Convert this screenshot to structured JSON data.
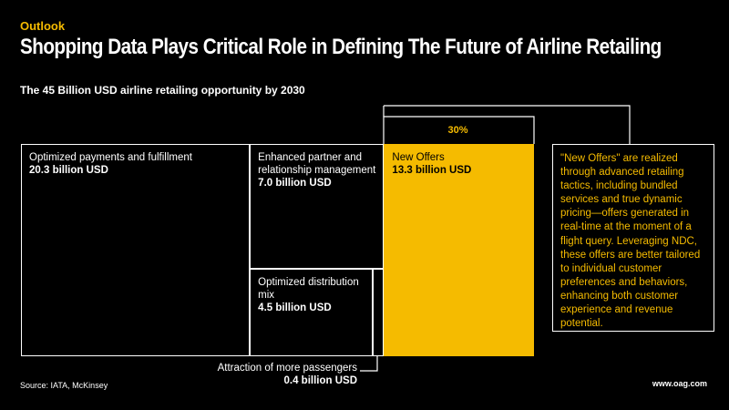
{
  "header": {
    "kicker": "Outlook",
    "title": "Shopping Data Plays Critical Role in Defining The Future of Airline Retailing",
    "subtitle": "The 45 Billion USD airline retailing opportunity by 2030"
  },
  "chart_data": {
    "type": "treemap",
    "unit": "billion USD",
    "highlight_share": "30%",
    "items": [
      {
        "label": "Optimized payments and fulfillment",
        "value": 20.3,
        "value_text": "20.3 billion USD"
      },
      {
        "label": "Enhanced partner and relationship management",
        "value": 7.0,
        "value_text": "7.0 billion USD"
      },
      {
        "label": "Optimized distribution mix",
        "value": 4.5,
        "value_text": "4.5 billion USD"
      },
      {
        "label": "Attraction of more passengers",
        "value": 0.4,
        "value_text": "0.4 billion USD"
      },
      {
        "label": "New Offers",
        "value": 13.3,
        "value_text": "13.3 billion USD",
        "highlight": true
      }
    ],
    "colors": {
      "highlight": "#f5bb00",
      "background": "#000000",
      "border": "#ffffff"
    }
  },
  "note": {
    "text": "\"New Offers\" are realized through advanced retailing tactics, including bundled services and true dynamic pricing—offers generated in real-time at the moment of a flight query. Leveraging NDC, these offers are better tailored to individual customer preferences and behaviors, enhancing both customer experience and revenue potential."
  },
  "footer": {
    "source": "Source: IATA, McKinsey",
    "site": "www.oag.com"
  }
}
